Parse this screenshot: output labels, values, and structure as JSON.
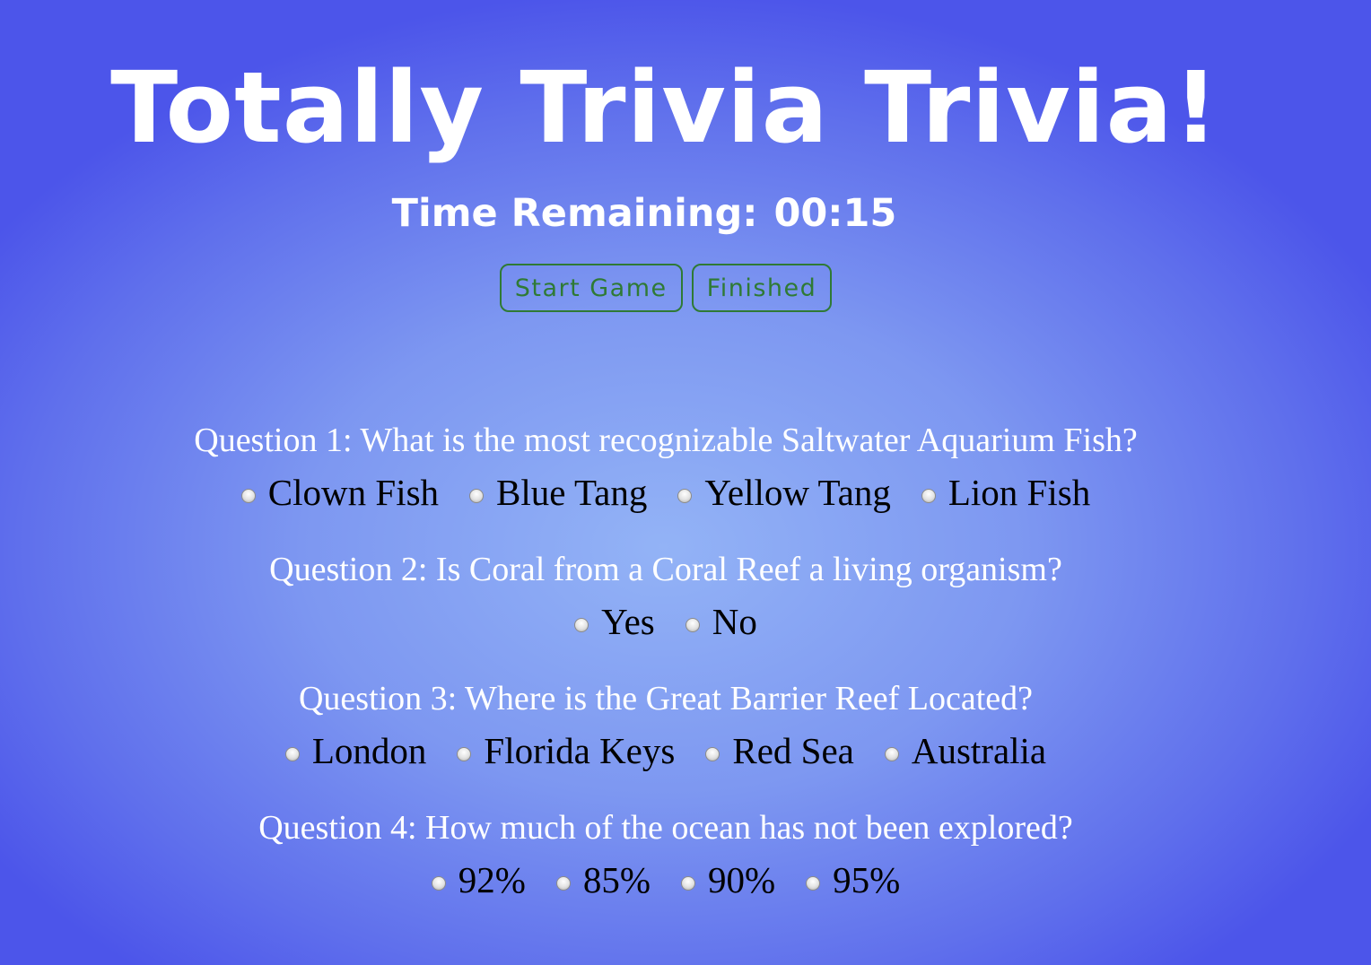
{
  "header": {
    "title": "Totally Trivia Trivia!",
    "timer_label": "Time Remaining:",
    "timer_value": "00:15"
  },
  "controls": {
    "start_label": "Start Game",
    "finished_label": "Finished"
  },
  "questions": [
    {
      "text": "Question 1: What is the most recognizable Saltwater Aquarium Fish?",
      "options": [
        "Clown Fish",
        "Blue Tang",
        "Yellow Tang",
        "Lion Fish"
      ]
    },
    {
      "text": "Question 2: Is Coral from a Coral Reef a living organism?",
      "options": [
        "Yes",
        "No"
      ]
    },
    {
      "text": "Question 3: Where is the Great Barrier Reef Located?",
      "options": [
        "London",
        "Florida Keys",
        "Red Sea",
        "Australia"
      ]
    },
    {
      "text": "Question 4: How much of the ocean has not been explored?",
      "options": [
        "92%",
        "85%",
        "90%",
        "95%"
      ]
    }
  ],
  "colors": {
    "background_center": "#93b3f6",
    "background_edge": "#4c55ea",
    "button_accent": "#2f7a35"
  }
}
